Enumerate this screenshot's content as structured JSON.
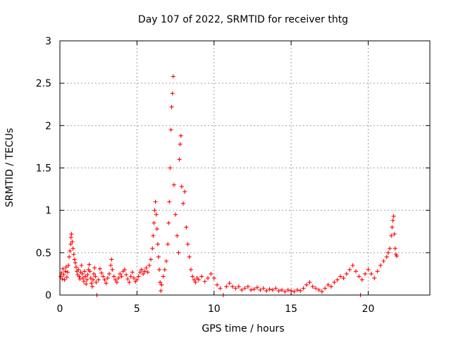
{
  "chart_data": {
    "type": "scatter",
    "title": "Day 107 of 2022, SRMTID for receiver thtg",
    "xlabel": "GPS time / hours",
    "ylabel": "SRMTID / TECUs",
    "xlim": [
      0,
      24
    ],
    "ylim": [
      0,
      3
    ],
    "xticks": [
      0,
      5,
      10,
      15,
      20
    ],
    "yticks": [
      0,
      0.5,
      1,
      1.5,
      2,
      2.5,
      3
    ],
    "xtick_labels": [
      "0",
      "5",
      "10",
      "15",
      "20"
    ],
    "ytick_labels": [
      "0",
      "0.5",
      "1",
      "1.5",
      "2",
      "2.5",
      "3"
    ],
    "grid": true,
    "marker": "plus",
    "color": "#ff0000",
    "series": [
      {
        "name": "SRMTID",
        "points": [
          [
            0.05,
            0.22
          ],
          [
            0.1,
            0.26
          ],
          [
            0.15,
            0.19
          ],
          [
            0.2,
            0.31
          ],
          [
            0.25,
            0.24
          ],
          [
            0.3,
            0.18
          ],
          [
            0.35,
            0.28
          ],
          [
            0.4,
            0.33
          ],
          [
            0.45,
            0.21
          ],
          [
            0.5,
            0.27
          ],
          [
            0.55,
            0.35
          ],
          [
            0.6,
            0.45
          ],
          [
            0.65,
            0.52
          ],
          [
            0.7,
            0.6
          ],
          [
            0.72,
            0.68
          ],
          [
            0.75,
            0.72
          ],
          [
            0.8,
            0.63
          ],
          [
            0.85,
            0.55
          ],
          [
            0.9,
            0.48
          ],
          [
            0.95,
            0.42
          ],
          [
            1.0,
            0.38
          ],
          [
            1.05,
            0.33
          ],
          [
            1.1,
            0.28
          ],
          [
            1.15,
            0.24
          ],
          [
            1.2,
            0.3
          ],
          [
            1.25,
            0.22
          ],
          [
            1.3,
            0.19
          ],
          [
            1.35,
            0.27
          ],
          [
            1.4,
            0.35
          ],
          [
            1.45,
            0.25
          ],
          [
            1.5,
            0.2
          ],
          [
            1.55,
            0.16
          ],
          [
            1.6,
            0.28
          ],
          [
            1.65,
            0.22
          ],
          [
            1.7,
            0.13
          ],
          [
            1.75,
            0.18
          ],
          [
            1.8,
            0.24
          ],
          [
            1.85,
            0.3
          ],
          [
            1.9,
            0.36
          ],
          [
            1.95,
            0.28
          ],
          [
            2.0,
            0.2
          ],
          [
            2.05,
            0.14
          ],
          [
            2.1,
            0.1
          ],
          [
            2.15,
            0.18
          ],
          [
            2.2,
            0.25
          ],
          [
            2.25,
            0.32
          ],
          [
            2.3,
            0.22
          ],
          [
            2.35,
            0.15
          ],
          [
            2.4,
            0.0
          ],
          [
            2.5,
            0.18
          ],
          [
            2.6,
            0.31
          ],
          [
            2.7,
            0.26
          ],
          [
            2.8,
            0.22
          ],
          [
            2.9,
            0.18
          ],
          [
            3.0,
            0.14
          ],
          [
            3.1,
            0.2
          ],
          [
            3.2,
            0.25
          ],
          [
            3.3,
            0.35
          ],
          [
            3.35,
            0.42
          ],
          [
            3.4,
            0.3
          ],
          [
            3.5,
            0.22
          ],
          [
            3.6,
            0.18
          ],
          [
            3.7,
            0.15
          ],
          [
            3.8,
            0.2
          ],
          [
            3.9,
            0.25
          ],
          [
            4.0,
            0.22
          ],
          [
            4.1,
            0.28
          ],
          [
            4.2,
            0.3
          ],
          [
            4.3,
            0.24
          ],
          [
            4.4,
            0.19
          ],
          [
            4.5,
            0.15
          ],
          [
            4.6,
            0.22
          ],
          [
            4.7,
            0.27
          ],
          [
            4.8,
            0.2
          ],
          [
            4.9,
            0.16
          ],
          [
            5.0,
            0.18
          ],
          [
            5.1,
            0.22
          ],
          [
            5.2,
            0.27
          ],
          [
            5.3,
            0.3
          ],
          [
            5.4,
            0.25
          ],
          [
            5.5,
            0.28
          ],
          [
            5.6,
            0.32
          ],
          [
            5.7,
            0.27
          ],
          [
            5.8,
            0.35
          ],
          [
            5.9,
            0.42
          ],
          [
            6.0,
            0.55
          ],
          [
            6.05,
            0.7
          ],
          [
            6.1,
            0.85
          ],
          [
            6.15,
            1.0
          ],
          [
            6.2,
            1.1
          ],
          [
            6.25,
            0.95
          ],
          [
            6.3,
            0.78
          ],
          [
            6.35,
            0.6
          ],
          [
            6.4,
            0.45
          ],
          [
            6.45,
            0.3
          ],
          [
            6.5,
            0.15
          ],
          [
            6.55,
            0.05
          ],
          [
            6.6,
            0.12
          ],
          [
            6.7,
            0.22
          ],
          [
            6.8,
            0.3
          ],
          [
            6.9,
            0.4
          ],
          [
            7.0,
            0.6
          ],
          [
            7.05,
            0.85
          ],
          [
            7.1,
            1.1
          ],
          [
            7.15,
            1.5
          ],
          [
            7.2,
            1.95
          ],
          [
            7.25,
            2.22
          ],
          [
            7.3,
            2.38
          ],
          [
            7.35,
            2.58
          ],
          [
            7.4,
            1.3
          ],
          [
            7.5,
            0.95
          ],
          [
            7.6,
            0.7
          ],
          [
            7.7,
            0.5
          ],
          [
            7.75,
            1.6
          ],
          [
            7.8,
            1.78
          ],
          [
            7.85,
            1.88
          ],
          [
            7.9,
            1.28
          ],
          [
            8.0,
            1.08
          ],
          [
            8.1,
            1.22
          ],
          [
            8.2,
            0.8
          ],
          [
            8.3,
            0.6
          ],
          [
            8.4,
            0.45
          ],
          [
            8.5,
            0.3
          ],
          [
            8.6,
            0.22
          ],
          [
            8.7,
            0.18
          ],
          [
            8.8,
            0.15
          ],
          [
            8.9,
            0.2
          ],
          [
            9.0,
            0.18
          ],
          [
            9.2,
            0.22
          ],
          [
            9.4,
            0.16
          ],
          [
            9.6,
            0.2
          ],
          [
            9.8,
            0.25
          ],
          [
            10.0,
            0.2
          ],
          [
            10.2,
            0.12
          ],
          [
            10.4,
            0.08
          ],
          [
            10.6,
            0.0
          ],
          [
            10.8,
            0.1
          ],
          [
            11.0,
            0.14
          ],
          [
            11.2,
            0.1
          ],
          [
            11.4,
            0.08
          ],
          [
            11.6,
            0.1
          ],
          [
            11.8,
            0.06
          ],
          [
            12.0,
            0.08
          ],
          [
            12.2,
            0.1
          ],
          [
            12.4,
            0.06
          ],
          [
            12.6,
            0.07
          ],
          [
            12.8,
            0.09
          ],
          [
            13.0,
            0.06
          ],
          [
            13.2,
            0.08
          ],
          [
            13.4,
            0.05
          ],
          [
            13.6,
            0.07
          ],
          [
            13.8,
            0.06
          ],
          [
            14.0,
            0.08
          ],
          [
            14.2,
            0.05
          ],
          [
            14.4,
            0.06
          ],
          [
            14.6,
            0.04
          ],
          [
            14.8,
            0.06
          ],
          [
            15.0,
            0.05
          ],
          [
            15.2,
            0.04
          ],
          [
            15.4,
            0.06
          ],
          [
            15.6,
            0.05
          ],
          [
            15.8,
            0.08
          ],
          [
            16.0,
            0.12
          ],
          [
            16.2,
            0.15
          ],
          [
            16.4,
            0.1
          ],
          [
            16.6,
            0.08
          ],
          [
            16.8,
            0.06
          ],
          [
            17.0,
            0.04
          ],
          [
            17.2,
            0.08
          ],
          [
            17.4,
            0.12
          ],
          [
            17.6,
            0.1
          ],
          [
            17.8,
            0.15
          ],
          [
            18.0,
            0.18
          ],
          [
            18.2,
            0.22
          ],
          [
            18.4,
            0.2
          ],
          [
            18.6,
            0.25
          ],
          [
            18.8,
            0.3
          ],
          [
            19.0,
            0.35
          ],
          [
            19.2,
            0.28
          ],
          [
            19.4,
            0.22
          ],
          [
            19.5,
            0.0
          ],
          [
            19.6,
            0.18
          ],
          [
            19.8,
            0.25
          ],
          [
            20.0,
            0.3
          ],
          [
            20.2,
            0.25
          ],
          [
            20.4,
            0.2
          ],
          [
            20.6,
            0.28
          ],
          [
            20.8,
            0.35
          ],
          [
            21.0,
            0.4
          ],
          [
            21.2,
            0.45
          ],
          [
            21.3,
            0.5
          ],
          [
            21.4,
            0.55
          ],
          [
            21.5,
            0.7
          ],
          [
            21.55,
            0.8
          ],
          [
            21.6,
            0.88
          ],
          [
            21.65,
            0.93
          ],
          [
            21.7,
            0.72
          ],
          [
            21.75,
            0.55
          ],
          [
            21.8,
            0.48
          ],
          [
            21.85,
            0.46
          ]
        ]
      }
    ]
  }
}
